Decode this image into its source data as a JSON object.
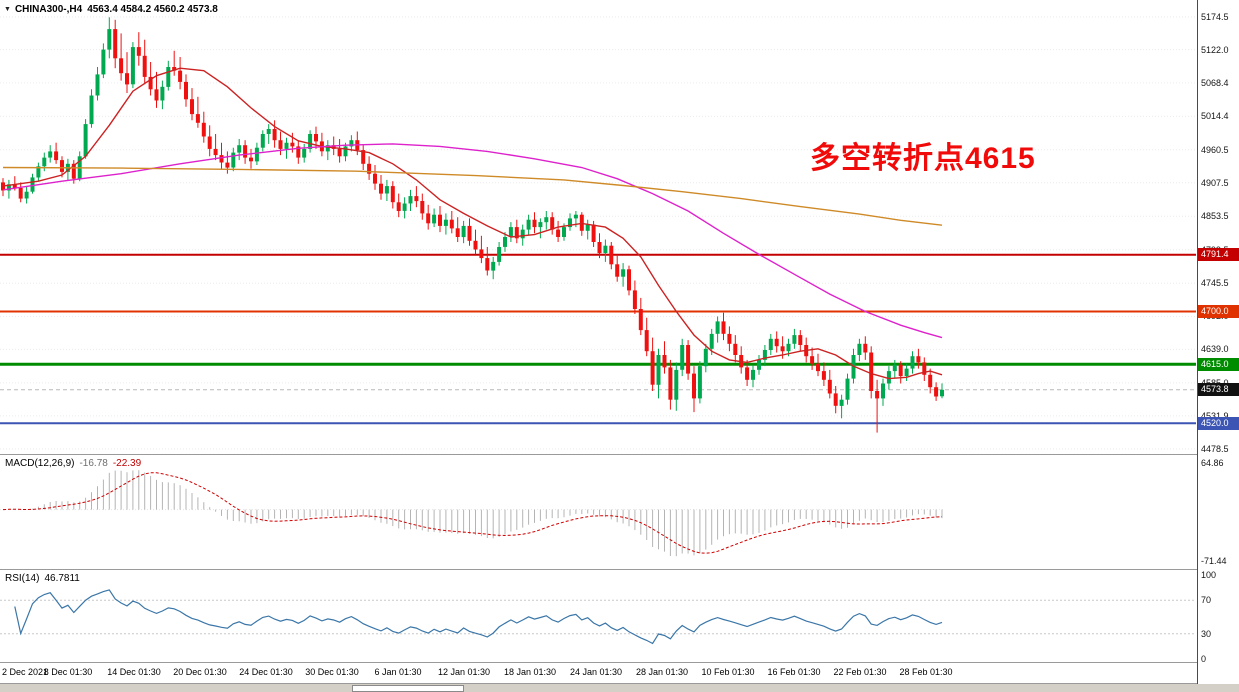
{
  "window": {
    "symbol_title": "CHINA300-,H4",
    "ohlc_text": "4563.4 4584.2 4560.2 4573.8"
  },
  "annotation": {
    "text": "多空转折点4615",
    "color": "#f00a0a"
  },
  "chart_data": {
    "type": "candlestick",
    "symbol": "CHINA300-",
    "timeframe": "H4",
    "current_price": 4573.8,
    "colors": {
      "up": "#00a94f",
      "down": "#ef1010",
      "ma_fast": "#cc2222",
      "ma_mid": "#dd22cc",
      "ma_slow": "#cf8a28",
      "macd_hist": "#b4b4b4",
      "macd_signal": "#d00000",
      "rsi": "#3a76a8",
      "grid": "#ebebeb",
      "current_price_line": "#b8b8b8"
    },
    "price_axis": {
      "ticks": [
        5174.5,
        5122.0,
        5068.4,
        5014.4,
        4960.5,
        4907.5,
        4853.5,
        4799.5,
        4745.5,
        4692.0,
        4639.0,
        4585.0,
        4531.9,
        4478.5
      ],
      "markers": [
        {
          "label": "4791.4",
          "price": 4791.4,
          "color": "#c40000"
        },
        {
          "label": "4700.0",
          "price": 4700.0,
          "color": "#e03200"
        },
        {
          "label": "4615.0",
          "price": 4615.0,
          "color": "#008c00"
        },
        {
          "label": "4573.8",
          "price": 4573.8,
          "color": "#111111"
        },
        {
          "label": "4520.0",
          "price": 4520.0,
          "color": "#3c55b4"
        }
      ]
    },
    "levels": [
      {
        "price": 4791.4,
        "color": "#c40000",
        "width": 2
      },
      {
        "price": 4700.0,
        "color": "#e03200",
        "width": 2
      },
      {
        "price": 4615.0,
        "color": "#008c00",
        "width": 3
      },
      {
        "price": 4520.0,
        "color": "#3c55b4",
        "width": 2
      }
    ],
    "time_axis": [
      "2 Dec 2021",
      "8 Dec 01:30",
      "14 Dec 01:30",
      "20 Dec 01:30",
      "24 Dec 01:30",
      "30 Dec 01:30",
      "6 Jan 01:30",
      "12 Jan 01:30",
      "18 Jan 01:30",
      "24 Jan 01:30",
      "28 Jan 01:30",
      "10 Feb 01:30",
      "16 Feb 01:30",
      "22 Feb 01:30",
      "28 Feb 01:30"
    ],
    "candles": [
      [
        4908,
        4915,
        4886,
        4895
      ],
      [
        4895,
        4912,
        4882,
        4905
      ],
      [
        4905,
        4918,
        4895,
        4899
      ],
      [
        4899,
        4908,
        4876,
        4882
      ],
      [
        4882,
        4901,
        4874,
        4893
      ],
      [
        4893,
        4922,
        4890,
        4916
      ],
      [
        4916,
        4940,
        4910,
        4934
      ],
      [
        4934,
        4956,
        4926,
        4948
      ],
      [
        4948,
        4968,
        4940,
        4958
      ],
      [
        4958,
        4972,
        4938,
        4944
      ],
      [
        4944,
        4950,
        4916,
        4925
      ],
      [
        4925,
        4946,
        4912,
        4938
      ],
      [
        4938,
        4944,
        4906,
        4914
      ],
      [
        4914,
        4958,
        4910,
        4950
      ],
      [
        4950,
        5010,
        4946,
        5002
      ],
      [
        5002,
        5058,
        4996,
        5048
      ],
      [
        5048,
        5094,
        5040,
        5082
      ],
      [
        5082,
        5132,
        5076,
        5122
      ],
      [
        5122,
        5174,
        5108,
        5155
      ],
      [
        5155,
        5170,
        5092,
        5108
      ],
      [
        5108,
        5148,
        5072,
        5084
      ],
      [
        5084,
        5118,
        5052,
        5066
      ],
      [
        5066,
        5134,
        5060,
        5126
      ],
      [
        5126,
        5150,
        5096,
        5112
      ],
      [
        5112,
        5138,
        5066,
        5078
      ],
      [
        5078,
        5102,
        5048,
        5058
      ],
      [
        5058,
        5086,
        5028,
        5040
      ],
      [
        5040,
        5072,
        5026,
        5062
      ],
      [
        5062,
        5104,
        5056,
        5094
      ],
      [
        5094,
        5120,
        5080,
        5088
      ],
      [
        5088,
        5110,
        5058,
        5070
      ],
      [
        5070,
        5082,
        5030,
        5042
      ],
      [
        5042,
        5060,
        5008,
        5018
      ],
      [
        5018,
        5046,
        4996,
        5004
      ],
      [
        5004,
        5022,
        4972,
        4982
      ],
      [
        4982,
        5000,
        4950,
        4962
      ],
      [
        4962,
        4986,
        4944,
        4952
      ],
      [
        4952,
        4972,
        4930,
        4940
      ],
      [
        4940,
        4958,
        4922,
        4932
      ],
      [
        4932,
        4964,
        4926,
        4956
      ],
      [
        4956,
        4978,
        4944,
        4968
      ],
      [
        4968,
        4976,
        4938,
        4948
      ],
      [
        4948,
        4962,
        4930,
        4942
      ],
      [
        4942,
        4972,
        4936,
        4964
      ],
      [
        4964,
        4992,
        4958,
        4986
      ],
      [
        4986,
        5002,
        4970,
        4994
      ],
      [
        4994,
        5008,
        4964,
        4976
      ],
      [
        4976,
        4990,
        4952,
        4962
      ],
      [
        4962,
        4980,
        4946,
        4972
      ],
      [
        4972,
        4988,
        4956,
        4966
      ],
      [
        4966,
        4976,
        4938,
        4948
      ],
      [
        4948,
        4970,
        4940,
        4962
      ],
      [
        4962,
        4992,
        4956,
        4986
      ],
      [
        4986,
        4998,
        4962,
        4974
      ],
      [
        4974,
        4988,
        4950,
        4958
      ],
      [
        4958,
        4976,
        4944,
        4968
      ],
      [
        4968,
        4982,
        4952,
        4962
      ],
      [
        4962,
        4978,
        4940,
        4950
      ],
      [
        4950,
        4972,
        4942,
        4966
      ],
      [
        4966,
        4984,
        4958,
        4976
      ],
      [
        4976,
        4990,
        4952,
        4960
      ],
      [
        4960,
        4968,
        4928,
        4938
      ],
      [
        4938,
        4950,
        4912,
        4922
      ],
      [
        4922,
        4936,
        4896,
        4906
      ],
      [
        4906,
        4920,
        4880,
        4890
      ],
      [
        4890,
        4912,
        4878,
        4902
      ],
      [
        4902,
        4910,
        4866,
        4876
      ],
      [
        4876,
        4890,
        4852,
        4862
      ],
      [
        4862,
        4884,
        4850,
        4874
      ],
      [
        4874,
        4896,
        4862,
        4886
      ],
      [
        4886,
        4902,
        4868,
        4878
      ],
      [
        4878,
        4890,
        4848,
        4858
      ],
      [
        4858,
        4872,
        4832,
        4842
      ],
      [
        4842,
        4866,
        4836,
        4856
      ],
      [
        4856,
        4870,
        4828,
        4838
      ],
      [
        4838,
        4858,
        4824,
        4848
      ],
      [
        4848,
        4862,
        4826,
        4834
      ],
      [
        4834,
        4852,
        4812,
        4820
      ],
      [
        4820,
        4846,
        4810,
        4838
      ],
      [
        4838,
        4850,
        4806,
        4814
      ],
      [
        4814,
        4832,
        4792,
        4800
      ],
      [
        4800,
        4822,
        4778,
        4786
      ],
      [
        4786,
        4804,
        4758,
        4766
      ],
      [
        4766,
        4788,
        4752,
        4780
      ],
      [
        4780,
        4812,
        4774,
        4804
      ],
      [
        4804,
        4828,
        4796,
        4820
      ],
      [
        4820,
        4844,
        4812,
        4836
      ],
      [
        4836,
        4848,
        4810,
        4818
      ],
      [
        4818,
        4840,
        4806,
        4832
      ],
      [
        4832,
        4856,
        4824,
        4848
      ],
      [
        4848,
        4860,
        4826,
        4836
      ],
      [
        4836,
        4850,
        4818,
        4844
      ],
      [
        4844,
        4862,
        4832,
        4852
      ],
      [
        4852,
        4860,
        4824,
        4832
      ],
      [
        4832,
        4846,
        4812,
        4820
      ],
      [
        4820,
        4842,
        4814,
        4836
      ],
      [
        4836,
        4858,
        4830,
        4850
      ],
      [
        4850,
        4862,
        4836,
        4856
      ],
      [
        4856,
        4860,
        4822,
        4830
      ],
      [
        4830,
        4848,
        4816,
        4840
      ],
      [
        4840,
        4846,
        4804,
        4812
      ],
      [
        4812,
        4826,
        4786,
        4794
      ],
      [
        4794,
        4816,
        4780,
        4806
      ],
      [
        4806,
        4812,
        4768,
        4776
      ],
      [
        4776,
        4792,
        4748,
        4756
      ],
      [
        4756,
        4778,
        4740,
        4768
      ],
      [
        4768,
        4774,
        4726,
        4734
      ],
      [
        4734,
        4750,
        4696,
        4704
      ],
      [
        4704,
        4722,
        4662,
        4670
      ],
      [
        4670,
        4690,
        4628,
        4636
      ],
      [
        4636,
        4658,
        4572,
        4582
      ],
      [
        4582,
        4640,
        4560,
        4630
      ],
      [
        4630,
        4652,
        4600,
        4610
      ],
      [
        4610,
        4622,
        4542,
        4558
      ],
      [
        4558,
        4618,
        4540,
        4606
      ],
      [
        4606,
        4656,
        4596,
        4646
      ],
      [
        4646,
        4654,
        4590,
        4600
      ],
      [
        4600,
        4612,
        4538,
        4560
      ],
      [
        4560,
        4620,
        4552,
        4612
      ],
      [
        4612,
        4648,
        4602,
        4640
      ],
      [
        4640,
        4672,
        4630,
        4664
      ],
      [
        4664,
        4692,
        4650,
        4684
      ],
      [
        4684,
        4698,
        4654,
        4664
      ],
      [
        4664,
        4676,
        4636,
        4648
      ],
      [
        4648,
        4662,
        4618,
        4630
      ],
      [
        4630,
        4644,
        4600,
        4610
      ],
      [
        4610,
        4622,
        4580,
        4590
      ],
      [
        4590,
        4614,
        4578,
        4606
      ],
      [
        4606,
        4630,
        4598,
        4622
      ],
      [
        4622,
        4646,
        4612,
        4638
      ],
      [
        4638,
        4664,
        4630,
        4656
      ],
      [
        4656,
        4668,
        4634,
        4644
      ],
      [
        4644,
        4660,
        4624,
        4636
      ],
      [
        4636,
        4656,
        4628,
        4648
      ],
      [
        4648,
        4672,
        4640,
        4662
      ],
      [
        4662,
        4670,
        4636,
        4646
      ],
      [
        4646,
        4658,
        4618,
        4628
      ],
      [
        4628,
        4642,
        4606,
        4616
      ],
      [
        4616,
        4632,
        4596,
        4604
      ],
      [
        4604,
        4618,
        4580,
        4590
      ],
      [
        4590,
        4606,
        4560,
        4568
      ],
      [
        4568,
        4580,
        4536,
        4548
      ],
      [
        4548,
        4566,
        4528,
        4558
      ],
      [
        4558,
        4600,
        4550,
        4592
      ],
      [
        4592,
        4640,
        4584,
        4630
      ],
      [
        4630,
        4656,
        4620,
        4648
      ],
      [
        4648,
        4660,
        4622,
        4634
      ],
      [
        4634,
        4644,
        4560,
        4572
      ],
      [
        4572,
        4590,
        4505,
        4560
      ],
      [
        4560,
        4592,
        4548,
        4584
      ],
      [
        4584,
        4612,
        4574,
        4604
      ],
      [
        4604,
        4622,
        4592,
        4614
      ],
      [
        4614,
        4620,
        4584,
        4596
      ],
      [
        4596,
        4616,
        4588,
        4608
      ],
      [
        4608,
        4636,
        4600,
        4628
      ],
      [
        4628,
        4640,
        4608,
        4618
      ],
      [
        4618,
        4626,
        4588,
        4598
      ],
      [
        4598,
        4608,
        4568,
        4578
      ],
      [
        4578,
        4586,
        4556,
        4563
      ],
      [
        4563.4,
        4584.2,
        4560.2,
        4573.8
      ]
    ],
    "moving_averages": [
      {
        "name": "ma-fast",
        "color": "#cc2222",
        "points": [
          [
            0,
            4902
          ],
          [
            6,
            4910
          ],
          [
            10,
            4920
          ],
          [
            14,
            4950
          ],
          [
            18,
            5000
          ],
          [
            22,
            5055
          ],
          [
            26,
            5080
          ],
          [
            30,
            5092
          ],
          [
            34,
            5088
          ],
          [
            38,
            5062
          ],
          [
            42,
            5028
          ],
          [
            46,
            4998
          ],
          [
            50,
            4975
          ],
          [
            54,
            4966
          ],
          [
            58,
            4962
          ],
          [
            62,
            4956
          ],
          [
            66,
            4938
          ],
          [
            70,
            4912
          ],
          [
            74,
            4880
          ],
          [
            78,
            4858
          ],
          [
            82,
            4838
          ],
          [
            86,
            4820
          ],
          [
            90,
            4824
          ],
          [
            94,
            4836
          ],
          [
            98,
            4842
          ],
          [
            102,
            4836
          ],
          [
            105,
            4818
          ],
          [
            108,
            4788
          ],
          [
            111,
            4742
          ],
          [
            114,
            4700
          ],
          [
            117,
            4662
          ],
          [
            120,
            4636
          ],
          [
            123,
            4622
          ],
          [
            126,
            4618
          ],
          [
            129,
            4625
          ],
          [
            132,
            4630
          ],
          [
            135,
            4636
          ],
          [
            138,
            4640
          ],
          [
            141,
            4630
          ],
          [
            144,
            4612
          ],
          [
            147,
            4600
          ],
          [
            150,
            4592
          ],
          [
            153,
            4594
          ],
          [
            155,
            4600
          ],
          [
            157,
            4604
          ],
          [
            159,
            4598
          ]
        ]
      },
      {
        "name": "ma-mid",
        "color": "#dd22cc",
        "points": [
          [
            0,
            4896
          ],
          [
            10,
            4910
          ],
          [
            20,
            4922
          ],
          [
            30,
            4938
          ],
          [
            40,
            4952
          ],
          [
            50,
            4963
          ],
          [
            58,
            4968
          ],
          [
            66,
            4970
          ],
          [
            74,
            4966
          ],
          [
            82,
            4958
          ],
          [
            90,
            4946
          ],
          [
            98,
            4932
          ],
          [
            104,
            4914
          ],
          [
            110,
            4890
          ],
          [
            116,
            4862
          ],
          [
            122,
            4826
          ],
          [
            128,
            4792
          ],
          [
            134,
            4760
          ],
          [
            140,
            4728
          ],
          [
            146,
            4700
          ],
          [
            152,
            4678
          ],
          [
            156,
            4666
          ],
          [
            159,
            4658
          ]
        ]
      },
      {
        "name": "ma-slow",
        "color": "#cf8a28",
        "points": [
          [
            0,
            4932
          ],
          [
            20,
            4931
          ],
          [
            40,
            4929
          ],
          [
            60,
            4926
          ],
          [
            80,
            4919
          ],
          [
            95,
            4912
          ],
          [
            105,
            4903
          ],
          [
            115,
            4893
          ],
          [
            125,
            4882
          ],
          [
            135,
            4869
          ],
          [
            145,
            4857
          ],
          [
            152,
            4847
          ],
          [
            159,
            4839
          ]
        ]
      }
    ],
    "macd": {
      "label": "MACD(12,26,9)",
      "value_main": "-16.78",
      "value_signal": "-22.39",
      "params": [
        12,
        26,
        9
      ],
      "axis_max": 64.86,
      "axis_min": -71.44
    },
    "rsi": {
      "label": "RSI(14)",
      "value": "46.7811",
      "period": 14,
      "axis": [
        100,
        70,
        30,
        0
      ],
      "levels": [
        70,
        30
      ]
    }
  }
}
